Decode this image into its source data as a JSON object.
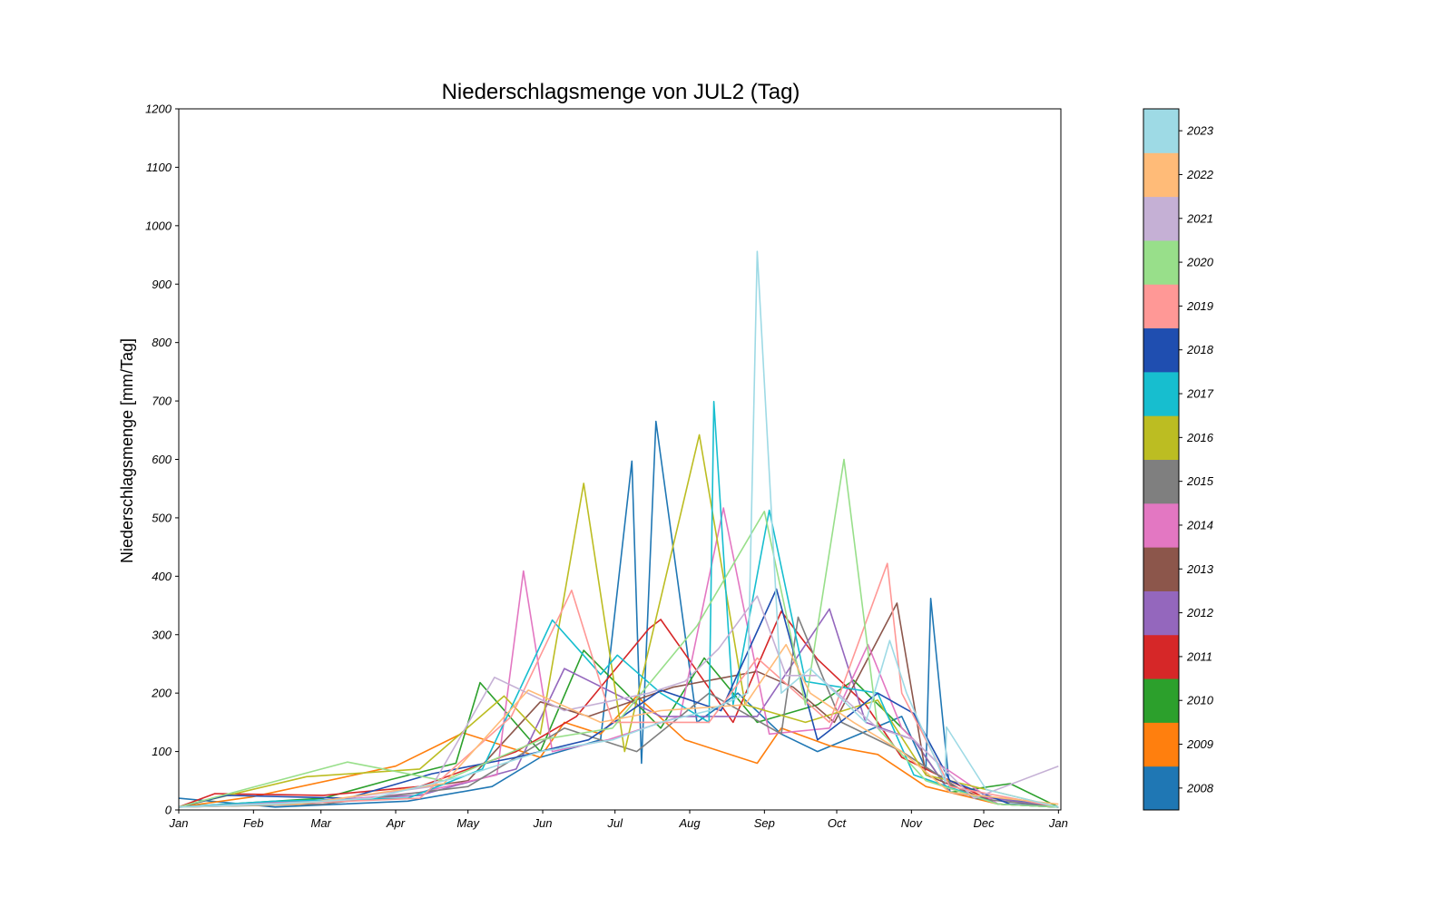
{
  "chart_data": {
    "type": "line",
    "title": "Niederschlagsmenge von JUL2 (Tag)",
    "xlabel": "",
    "ylabel": "Niederschlagsmenge [mm/Tag]",
    "ylim": [
      0,
      1200
    ],
    "yticks": [
      0,
      100,
      200,
      300,
      400,
      500,
      600,
      700,
      800,
      900,
      1000,
      1100,
      1200
    ],
    "xlim": [
      0,
      366
    ],
    "xticks": [
      {
        "label": "Jan",
        "day": 0
      },
      {
        "label": "Feb",
        "day": 31
      },
      {
        "label": "Mar",
        "day": 59
      },
      {
        "label": "Apr",
        "day": 90
      },
      {
        "label": "May",
        "day": 120
      },
      {
        "label": "Jun",
        "day": 151
      },
      {
        "label": "Jul",
        "day": 181
      },
      {
        "label": "Aug",
        "day": 212
      },
      {
        "label": "Sep",
        "day": 243
      },
      {
        "label": "Oct",
        "day": 273
      },
      {
        "label": "Nov",
        "day": 304
      },
      {
        "label": "Dec",
        "day": 334
      },
      {
        "label": "Jan",
        "day": 365
      }
    ],
    "grid": false,
    "legend": "colorbar-right",
    "series": [
      {
        "name": "2008",
        "color": "#1f77b4",
        "points": [
          [
            0,
            20
          ],
          [
            40,
            5
          ],
          [
            95,
            15
          ],
          [
            130,
            40
          ],
          [
            150,
            90
          ],
          [
            175,
            120
          ],
          [
            188,
            597
          ],
          [
            192,
            80
          ],
          [
            198,
            665
          ],
          [
            215,
            150
          ],
          [
            232,
            200
          ],
          [
            250,
            130
          ],
          [
            265,
            100
          ],
          [
            300,
            160
          ],
          [
            310,
            70
          ],
          [
            312,
            362
          ],
          [
            320,
            30
          ],
          [
            360,
            10
          ]
        ]
      },
      {
        "name": "2009",
        "color": "#ff7f0e",
        "points": [
          [
            0,
            5
          ],
          [
            30,
            22
          ],
          [
            90,
            75
          ],
          [
            118,
            132
          ],
          [
            150,
            90
          ],
          [
            160,
            150
          ],
          [
            175,
            130
          ],
          [
            190,
            195
          ],
          [
            210,
            120
          ],
          [
            240,
            80
          ],
          [
            250,
            140
          ],
          [
            270,
            110
          ],
          [
            290,
            95
          ],
          [
            310,
            40
          ],
          [
            340,
            10
          ],
          [
            365,
            5
          ]
        ]
      },
      {
        "name": "2010",
        "color": "#2ca02c",
        "points": [
          [
            0,
            5
          ],
          [
            60,
            20
          ],
          [
            88,
            52
          ],
          [
            115,
            80
          ],
          [
            125,
            218
          ],
          [
            150,
            100
          ],
          [
            168,
            273
          ],
          [
            200,
            140
          ],
          [
            218,
            260
          ],
          [
            240,
            150
          ],
          [
            265,
            180
          ],
          [
            280,
            222
          ],
          [
            305,
            120
          ],
          [
            320,
            30
          ],
          [
            345,
            45
          ],
          [
            365,
            5
          ]
        ]
      },
      {
        "name": "2011",
        "color": "#d62728",
        "points": [
          [
            0,
            5
          ],
          [
            15,
            28
          ],
          [
            60,
            25
          ],
          [
            100,
            40
          ],
          [
            140,
            100
          ],
          [
            165,
            160
          ],
          [
            195,
            310
          ],
          [
            200,
            326
          ],
          [
            230,
            150
          ],
          [
            250,
            340
          ],
          [
            265,
            258
          ],
          [
            285,
            180
          ],
          [
            300,
            90
          ],
          [
            340,
            10
          ],
          [
            365,
            5
          ]
        ]
      },
      {
        "name": "2012",
        "color": "#9467bd",
        "points": [
          [
            0,
            5
          ],
          [
            50,
            15
          ],
          [
            100,
            25
          ],
          [
            140,
            70
          ],
          [
            160,
            242
          ],
          [
            200,
            160
          ],
          [
            240,
            160
          ],
          [
            270,
            344
          ],
          [
            285,
            150
          ],
          [
            305,
            120
          ],
          [
            320,
            30
          ],
          [
            365,
            5
          ]
        ]
      },
      {
        "name": "2013",
        "color": "#8c564b",
        "points": [
          [
            0,
            5
          ],
          [
            60,
            15
          ],
          [
            120,
            50
          ],
          [
            150,
            185
          ],
          [
            170,
            160
          ],
          [
            205,
            210
          ],
          [
            240,
            237
          ],
          [
            255,
            210
          ],
          [
            272,
            150
          ],
          [
            298,
            354
          ],
          [
            310,
            60
          ],
          [
            340,
            10
          ],
          [
            365,
            5
          ]
        ]
      },
      {
        "name": "2014",
        "color": "#e377c2",
        "points": [
          [
            0,
            5
          ],
          [
            50,
            10
          ],
          [
            100,
            30
          ],
          [
            132,
            60
          ],
          [
            143,
            409
          ],
          [
            155,
            100
          ],
          [
            178,
            120
          ],
          [
            208,
            160
          ],
          [
            226,
            517
          ],
          [
            245,
            130
          ],
          [
            270,
            140
          ],
          [
            286,
            283
          ],
          [
            300,
            140
          ],
          [
            315,
            80
          ],
          [
            340,
            10
          ],
          [
            365,
            5
          ]
        ]
      },
      {
        "name": "2015",
        "color": "#7f7f7f",
        "points": [
          [
            0,
            5
          ],
          [
            60,
            10
          ],
          [
            120,
            40
          ],
          [
            160,
            140
          ],
          [
            190,
            100
          ],
          [
            220,
            200
          ],
          [
            250,
            130
          ],
          [
            257,
            330
          ],
          [
            275,
            150
          ],
          [
            300,
            100
          ],
          [
            330,
            20
          ],
          [
            365,
            5
          ]
        ]
      },
      {
        "name": "2016",
        "color": "#bcbd22",
        "points": [
          [
            0,
            5
          ],
          [
            53,
            57
          ],
          [
            100,
            70
          ],
          [
            135,
            195
          ],
          [
            150,
            130
          ],
          [
            168,
            559
          ],
          [
            185,
            100
          ],
          [
            216,
            642
          ],
          [
            235,
            180
          ],
          [
            260,
            150
          ],
          [
            290,
            188
          ],
          [
            310,
            60
          ],
          [
            335,
            35
          ],
          [
            365,
            5
          ]
        ]
      },
      {
        "name": "2017",
        "color": "#17becf",
        "points": [
          [
            0,
            5
          ],
          [
            40,
            15
          ],
          [
            95,
            20
          ],
          [
            126,
            70
          ],
          [
            155,
            325
          ],
          [
            175,
            232
          ],
          [
            182,
            265
          ],
          [
            200,
            200
          ],
          [
            220,
            150
          ],
          [
            222,
            699
          ],
          [
            230,
            180
          ],
          [
            245,
            513
          ],
          [
            260,
            220
          ],
          [
            290,
            200
          ],
          [
            305,
            60
          ],
          [
            340,
            10
          ],
          [
            365,
            5
          ]
        ]
      },
      {
        "name": "2018",
        "color": "#1f4eb0",
        "points": [
          [
            0,
            5
          ],
          [
            20,
            25
          ],
          [
            70,
            20
          ],
          [
            105,
            62
          ],
          [
            140,
            90
          ],
          [
            170,
            120
          ],
          [
            200,
            205
          ],
          [
            225,
            170
          ],
          [
            248,
            378
          ],
          [
            265,
            120
          ],
          [
            290,
            200
          ],
          [
            305,
            165
          ],
          [
            320,
            50
          ],
          [
            345,
            10
          ],
          [
            365,
            5
          ]
        ]
      },
      {
        "name": "2019",
        "color": "#ff9896",
        "points": [
          [
            0,
            5
          ],
          [
            40,
            10
          ],
          [
            100,
            20
          ],
          [
            138,
            160
          ],
          [
            163,
            376
          ],
          [
            180,
            150
          ],
          [
            220,
            150
          ],
          [
            240,
            260
          ],
          [
            270,
            150
          ],
          [
            294,
            422
          ],
          [
            300,
            200
          ],
          [
            320,
            40
          ],
          [
            365,
            5
          ]
        ]
      },
      {
        "name": "2020",
        "color": "#98df8a",
        "points": [
          [
            0,
            5
          ],
          [
            70,
            82
          ],
          [
            110,
            50
          ],
          [
            150,
            120
          ],
          [
            180,
            140
          ],
          [
            215,
            315
          ],
          [
            243,
            511
          ],
          [
            260,
            180
          ],
          [
            276,
            600
          ],
          [
            290,
            140
          ],
          [
            310,
            50
          ],
          [
            340,
            10
          ],
          [
            365,
            5
          ]
        ]
      },
      {
        "name": "2021",
        "color": "#c5b0d5",
        "points": [
          [
            0,
            5
          ],
          [
            60,
            15
          ],
          [
            105,
            40
          ],
          [
            131,
            227
          ],
          [
            160,
            170
          ],
          [
            195,
            200
          ],
          [
            210,
            220
          ],
          [
            224,
            276
          ],
          [
            240,
            366
          ],
          [
            252,
            230
          ],
          [
            265,
            230
          ],
          [
            290,
            140
          ],
          [
            305,
            120
          ],
          [
            330,
            20
          ],
          [
            365,
            75
          ]
        ]
      },
      {
        "name": "2022",
        "color": "#ffbb78",
        "points": [
          [
            0,
            5
          ],
          [
            50,
            10
          ],
          [
            110,
            45
          ],
          [
            145,
            205
          ],
          [
            175,
            150
          ],
          [
            200,
            170
          ],
          [
            235,
            180
          ],
          [
            252,
            283
          ],
          [
            262,
            200
          ],
          [
            280,
            150
          ],
          [
            300,
            100
          ],
          [
            320,
            30
          ],
          [
            365,
            10
          ]
        ]
      },
      {
        "name": "2023",
        "color": "#9edae5",
        "points": [
          [
            0,
            5
          ],
          [
            40,
            10
          ],
          [
            80,
            20
          ],
          [
            120,
            60
          ],
          [
            150,
            100
          ],
          [
            180,
            120
          ],
          [
            200,
            150
          ],
          [
            220,
            170
          ],
          [
            236,
            200
          ],
          [
            240,
            956
          ],
          [
            250,
            200
          ],
          [
            262,
            242
          ],
          [
            285,
            150
          ],
          [
            295,
            290
          ],
          [
            302,
            200
          ],
          [
            318,
            48
          ],
          [
            318.5,
            142
          ],
          [
            335,
            35
          ],
          [
            365,
            5
          ]
        ]
      }
    ]
  }
}
